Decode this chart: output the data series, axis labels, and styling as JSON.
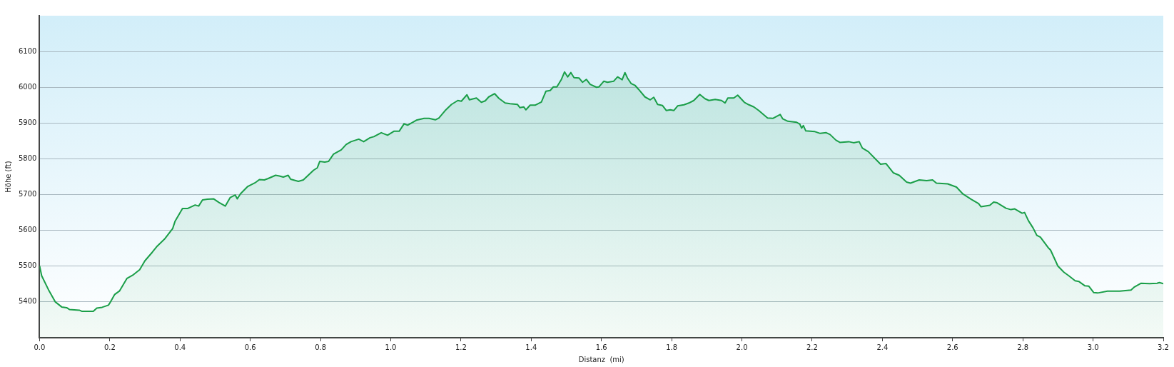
{
  "chart_data": {
    "type": "area",
    "xlabel": "Distanz  (mi)",
    "ylabel": "Höhe (ft)",
    "xlim": [
      0,
      3.2
    ],
    "ylim": [
      5300,
      6200
    ],
    "xticks": [
      {
        "value": 0,
        "label": "0.0"
      },
      0.2,
      0.4,
      0.6,
      0.8,
      {
        "value": 1,
        "label": "1.0"
      },
      1.2,
      1.4,
      1.6,
      1.8,
      {
        "value": 2,
        "label": "2.0"
      },
      2.2,
      2.4,
      2.6,
      2.8,
      {
        "value": 3,
        "label": "3.0"
      },
      3.2
    ],
    "yticks": [
      5400,
      5500,
      5600,
      5700,
      5800,
      5900,
      6000,
      6100
    ],
    "grid": "y",
    "series": [
      {
        "color": "#1a9e48",
        "x": [
          0,
          0.006,
          0.027,
          0.045,
          0.063,
          0.077,
          0.085,
          0.113,
          0.12,
          0.153,
          0.163,
          0.178,
          0.196,
          0.2,
          0.214,
          0.228,
          0.249,
          0.267,
          0.285,
          0.3,
          0.321,
          0.335,
          0.357,
          0.379,
          0.386,
          0.407,
          0.421,
          0.443,
          0.453,
          0.464,
          0.478,
          0.496,
          0.511,
          0.529,
          0.543,
          0.557,
          0.563,
          0.572,
          0.593,
          0.615,
          0.626,
          0.64,
          0.651,
          0.672,
          0.683,
          0.694,
          0.708,
          0.715,
          0.737,
          0.751,
          0.78,
          0.791,
          0.798,
          0.812,
          0.823,
          0.837,
          0.859,
          0.873,
          0.887,
          0.909,
          0.923,
          0.941,
          0.952,
          0.973,
          0.991,
          1.009,
          1.024,
          1.038,
          1.048,
          1.073,
          1.095,
          1.109,
          1.127,
          1.137,
          1.155,
          1.173,
          1.191,
          1.201,
          1.217,
          1.224,
          1.244,
          1.258,
          1.269,
          1.279,
          1.296,
          1.308,
          1.326,
          1.34,
          1.361,
          1.368,
          1.379,
          1.385,
          1.397,
          1.411,
          1.429,
          1.442,
          1.454,
          1.463,
          1.473,
          1.486,
          1.495,
          1.504,
          1.513,
          1.522,
          1.536,
          1.546,
          1.557,
          1.568,
          1.586,
          1.593,
          1.607,
          1.617,
          1.635,
          1.646,
          1.659,
          1.667,
          1.674,
          1.685,
          1.696,
          1.706,
          1.724,
          1.739,
          1.749,
          1.76,
          1.774,
          1.785,
          1.796,
          1.806,
          1.817,
          1.835,
          1.849,
          1.863,
          1.88,
          1.895,
          1.906,
          1.924,
          1.942,
          1.952,
          1.96,
          1.977,
          1.988,
          2.007,
          2.02,
          2.034,
          2.048,
          2.073,
          2.088,
          2.109,
          2.116,
          2.131,
          2.156,
          2.165,
          2.17,
          2.175,
          2.182,
          2.208,
          2.223,
          2.24,
          2.251,
          2.268,
          2.279,
          2.304,
          2.318,
          2.334,
          2.343,
          2.36,
          2.381,
          2.395,
          2.41,
          2.431,
          2.448,
          2.469,
          2.48,
          2.505,
          2.526,
          2.543,
          2.554,
          2.586,
          2.611,
          2.628,
          2.653,
          2.674,
          2.681,
          2.706,
          2.717,
          2.727,
          2.752,
          2.766,
          2.777,
          2.798,
          2.805,
          2.816,
          2.829,
          2.84,
          2.85,
          2.872,
          2.879,
          2.9,
          2.917,
          2.931,
          2.949,
          2.96,
          2.977,
          2.988,
          3.002,
          3.013,
          3.041,
          3.076,
          3.108,
          3.118,
          3.136,
          3.161,
          3.182,
          3.189,
          3.2
        ],
        "values": [
          5501,
          5473,
          5431,
          5400,
          5386,
          5384,
          5379,
          5377,
          5374,
          5374,
          5383,
          5385,
          5391,
          5397,
          5421,
          5431,
          5466,
          5476,
          5490,
          5515,
          5539,
          5556,
          5577,
          5605,
          5626,
          5661,
          5661,
          5671,
          5668,
          5685,
          5687,
          5688,
          5678,
          5668,
          5692,
          5699,
          5688,
          5702,
          5723,
          5734,
          5742,
          5741,
          5745,
          5754,
          5752,
          5749,
          5754,
          5743,
          5737,
          5741,
          5768,
          5775,
          5793,
          5791,
          5793,
          5813,
          5825,
          5840,
          5848,
          5855,
          5848,
          5859,
          5862,
          5873,
          5866,
          5877,
          5877,
          5898,
          5894,
          5908,
          5913,
          5913,
          5909,
          5914,
          5935,
          5952,
          5963,
          5961,
          5979,
          5965,
          5970,
          5958,
          5962,
          5973,
          5982,
          5969,
          5956,
          5954,
          5952,
          5943,
          5945,
          5937,
          5950,
          5950,
          5959,
          5989,
          5991,
          6001,
          6001,
          6022,
          6043,
          6029,
          6041,
          6027,
          6026,
          6014,
          6022,
          6008,
          6000,
          6001,
          6017,
          6014,
          6017,
          6029,
          6021,
          6041,
          6026,
          6010,
          6005,
          5994,
          5973,
          5965,
          5972,
          5952,
          5949,
          5935,
          5937,
          5935,
          5948,
          5951,
          5956,
          5963,
          5980,
          5968,
          5963,
          5966,
          5963,
          5956,
          5970,
          5970,
          5978,
          5958,
          5951,
          5945,
          5935,
          5914,
          5913,
          5924,
          5912,
          5905,
          5902,
          5897,
          5886,
          5893,
          5878,
          5876,
          5871,
          5873,
          5868,
          5852,
          5846,
          5848,
          5845,
          5848,
          5830,
          5820,
          5799,
          5785,
          5787,
          5761,
          5754,
          5735,
          5732,
          5741,
          5739,
          5741,
          5732,
          5730,
          5721,
          5703,
          5687,
          5675,
          5666,
          5670,
          5679,
          5677,
          5662,
          5658,
          5660,
          5648,
          5650,
          5627,
          5607,
          5586,
          5581,
          5552,
          5545,
          5500,
          5483,
          5473,
          5459,
          5457,
          5445,
          5444,
          5426,
          5425,
          5430,
          5430,
          5433,
          5442,
          5452,
          5451,
          5452,
          5454,
          5451
        ]
      }
    ]
  }
}
